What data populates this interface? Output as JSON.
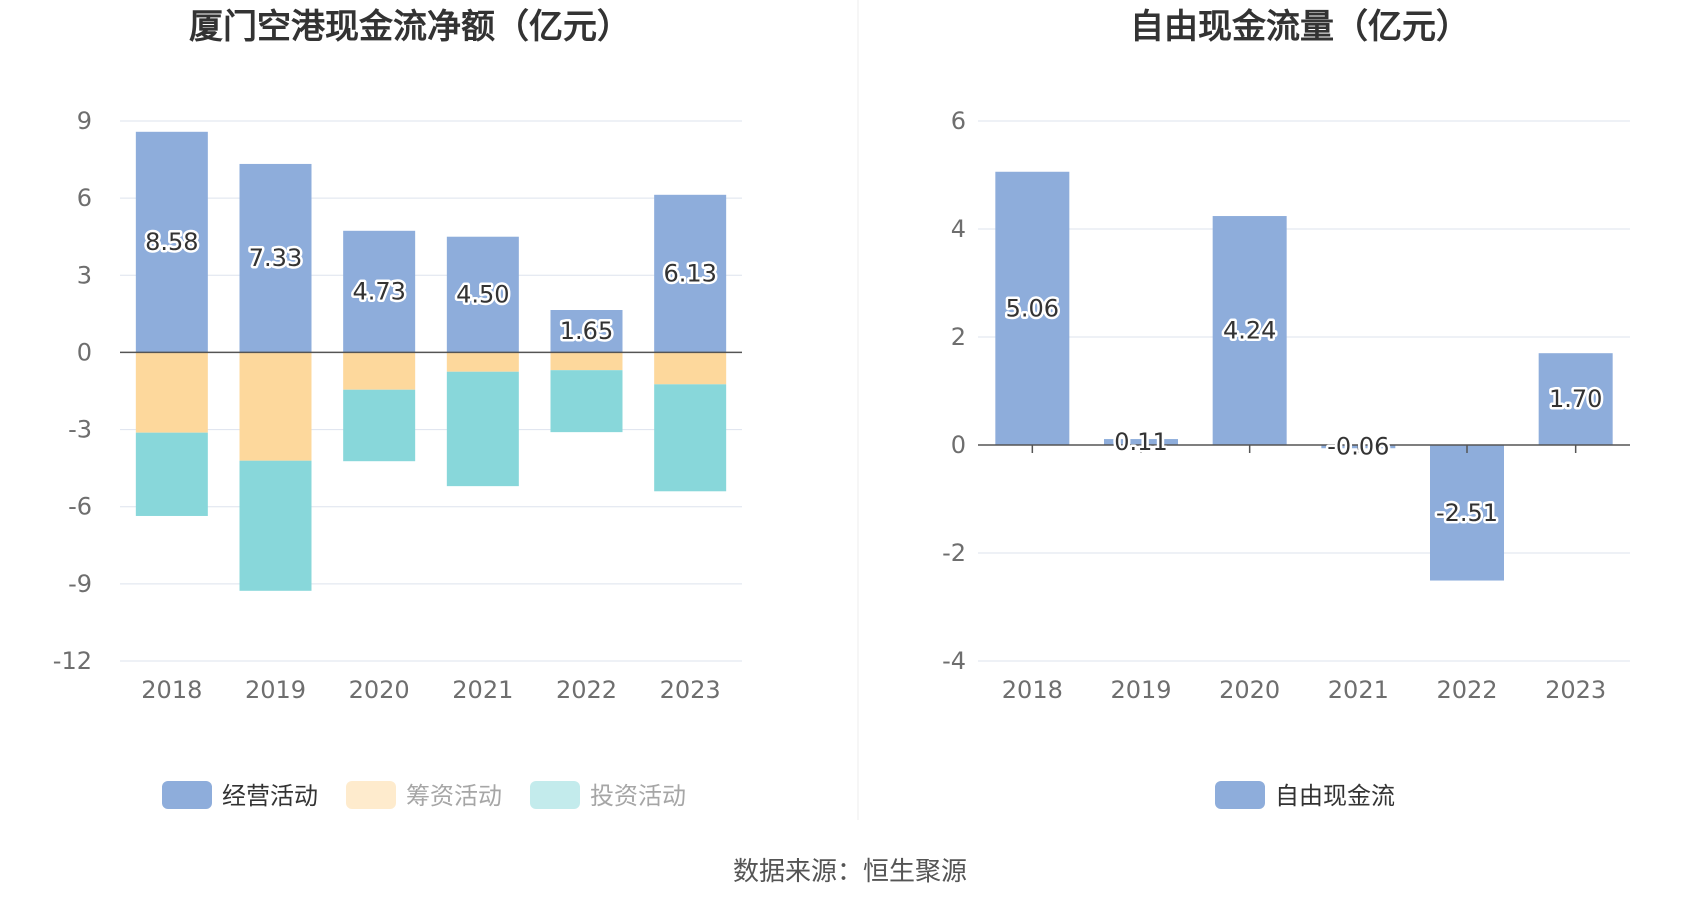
{
  "source_text": "数据来源：恒生聚源",
  "chart_data": [
    {
      "type": "bar",
      "stacked": true,
      "title": "厦门空港现金流净额（亿元）",
      "categories": [
        "2018",
        "2019",
        "2020",
        "2021",
        "2022",
        "2023"
      ],
      "ylim": [
        -12,
        9
      ],
      "yticks": [
        9,
        6,
        3,
        0,
        -3,
        -6,
        -9,
        -12
      ],
      "grid": true,
      "legend_position": "bottom",
      "series": [
        {
          "name": "经营活动",
          "values": [
            8.58,
            7.33,
            4.73,
            4.5,
            1.65,
            6.13
          ],
          "labels": [
            "8.58",
            "7.33",
            "4.73",
            "4.50",
            "1.65",
            "6.13"
          ],
          "color": "#8eaddb",
          "legend_active": true
        },
        {
          "name": "筹资活动",
          "values": [
            -3.12,
            -4.21,
            -1.45,
            -0.75,
            -0.69,
            -1.24
          ],
          "color": "#fdd89c",
          "legend_active": false
        },
        {
          "name": "投资活动",
          "values": [
            -3.24,
            -5.06,
            -2.78,
            -4.45,
            -2.41,
            -4.16
          ],
          "color": "#88d7da",
          "legend_active": false
        }
      ]
    },
    {
      "type": "bar",
      "title": "自由现金流量（亿元）",
      "categories": [
        "2018",
        "2019",
        "2020",
        "2021",
        "2022",
        "2023"
      ],
      "ylim": [
        -4,
        6
      ],
      "yticks": [
        6,
        4,
        2,
        0,
        -2,
        -4
      ],
      "grid": true,
      "legend_position": "bottom",
      "series": [
        {
          "name": "自由现金流",
          "values": [
            5.06,
            0.11,
            4.24,
            -0.06,
            -2.51,
            1.7
          ],
          "labels": [
            "5.06",
            "0.11",
            "4.24",
            "-0.06",
            "-2.51",
            "1.70"
          ],
          "color": "#8eaddb",
          "legend_active": true
        }
      ]
    }
  ]
}
